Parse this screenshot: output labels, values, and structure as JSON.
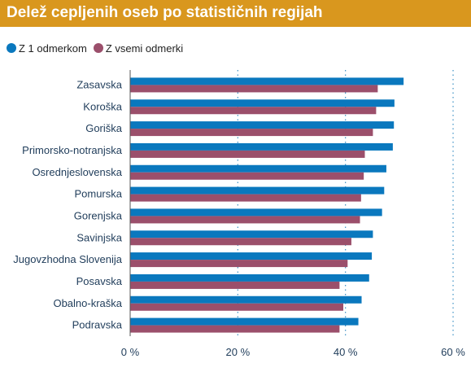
{
  "title": "Delež cepljenih oseb po statističnih regijah",
  "colors": {
    "header_bg": "#d9971e",
    "series1": "#0a78be",
    "series2": "#9b4f6b",
    "grid": "#3a8fc4",
    "axis": "#555555",
    "label": "#1f3c5a"
  },
  "chart_data": {
    "type": "bar",
    "orientation": "horizontal",
    "title": "Delež cepljenih oseb po statističnih regijah",
    "categories": [
      "Zasavska",
      "Koroška",
      "Goriška",
      "Primorsko-notranjska",
      "Osrednjeslovenska",
      "Pomurska",
      "Gorenjska",
      "Savinjska",
      "Jugovzhodna Slovenija",
      "Posavska",
      "Obalno-kraška",
      "Podravska"
    ],
    "series": [
      {
        "name": "Z 1 odmerkom",
        "color": "#0a78be",
        "values": [
          50.8,
          49.1,
          49.0,
          48.8,
          47.6,
          47.2,
          46.8,
          45.1,
          44.9,
          44.4,
          43.0,
          42.4
        ]
      },
      {
        "name": "Z vsemi odmerki",
        "color": "#9b4f6b",
        "values": [
          46.0,
          45.7,
          45.1,
          43.6,
          43.4,
          42.9,
          42.7,
          41.1,
          40.4,
          38.9,
          39.6,
          38.9
        ]
      }
    ],
    "xlim": [
      0,
      60
    ],
    "xticks": [
      0,
      20,
      40,
      60
    ],
    "xtick_labels": [
      "0 %",
      "20 %",
      "40 %",
      "60 %"
    ],
    "grid": true,
    "legend_position": "top-left"
  }
}
